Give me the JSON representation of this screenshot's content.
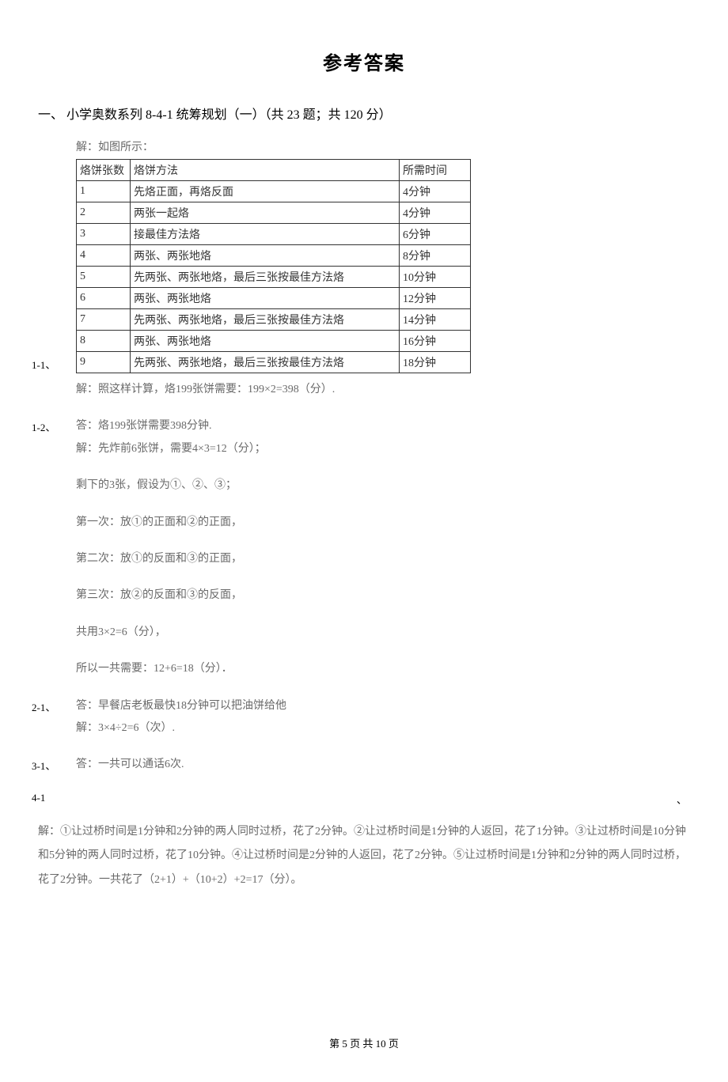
{
  "title": "参考答案",
  "section_heading": "一、 小学奥数系列 8-4-1 统筹规划（一）（共 23 题；共 120 分）",
  "q1_1": {
    "label": "1-1、",
    "intro": "解：如图所示：",
    "table": {
      "columns": [
        "烙饼张数",
        "烙饼方法",
        "所需时间"
      ],
      "rows": [
        [
          "1",
          "先烙正面，再烙反面",
          "4分钟"
        ],
        [
          "2",
          "两张一起烙",
          "4分钟"
        ],
        [
          "3",
          "接最佳方法烙",
          "6分钟"
        ],
        [
          "4",
          "两张、两张地烙",
          "8分钟"
        ],
        [
          "5",
          "先两张、两张地烙，最后三张按最佳方法烙",
          "10分钟"
        ],
        [
          "6",
          "两张、两张地烙",
          "12分钟"
        ],
        [
          "7",
          "先两张、两张地烙，最后三张按最佳方法烙",
          "14分钟"
        ],
        [
          "8",
          "两张、两张地烙",
          "16分钟"
        ],
        [
          "9",
          "先两张、两张地烙，最后三张按最佳方法烙",
          "18分钟"
        ]
      ]
    },
    "after": "解：照这样计算，烙199张饼需要：199×2=398（分）."
  },
  "q1_2": {
    "label": "1-2、",
    "text": "答：烙199张饼需要398分钟."
  },
  "q2_lines": [
    "解：先炸前6张饼，需要4×3=12（分）；",
    "剩下的3张，假设为①、②、③；",
    "第一次：放①的正面和②的正面，",
    "第二次：放①的反面和③的正面，",
    "第三次：放②的反面和③的反面，",
    "共用3×2=6（分），",
    "所以一共需要：12+6=18（分）．"
  ],
  "q2_1": {
    "label": "2-1、",
    "text": "答：早餐店老板最快18分钟可以把油饼给他",
    "after": "解：3×4÷2=6（次）."
  },
  "q3_1": {
    "label": "3-1、",
    "text": "答：一共可以通话6次."
  },
  "q4_1": {
    "label": "4-1",
    "dun": "、",
    "paragraph": "解：①让过桥时间是1分钟和2分钟的两人同时过桥，花了2分钟。②让过桥时间是1分钟的人返回，花了1分钟。③让过桥时间是10分钟和5分钟的两人同时过桥，花了10分钟。④让过桥时间是2分钟的人返回，花了2分钟。⑤让过桥时间是1分钟和2分钟的两人同时过桥，花了2分钟。一共花了（2+1）+（10+2）+2=17（分）。"
  },
  "footer": "第 5 页 共 10 页"
}
